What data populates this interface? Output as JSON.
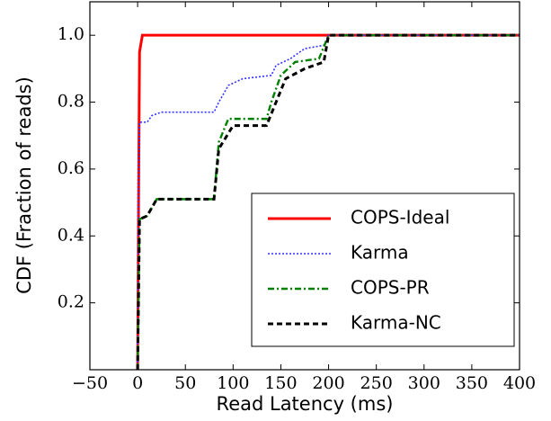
{
  "chart_data": {
    "type": "line",
    "xlabel": "Read Latency (ms)",
    "ylabel": "CDF (Fraction of reads)",
    "xlim": [
      -50,
      400
    ],
    "xticks": [
      {
        "value": -50,
        "label": "−50"
      },
      0,
      50,
      100,
      150,
      200,
      250,
      300,
      350,
      400
    ],
    "ylim": [
      0,
      1.1
    ],
    "yticks": [
      0.2,
      0.4,
      0.6,
      0.8,
      {
        "value": 1,
        "label": "1.0"
      }
    ],
    "legend": "lower right",
    "series": [
      {
        "name": "COPS-Ideal",
        "color": "#ff0000",
        "style": "solid",
        "x": [
          0,
          1,
          2,
          5,
          400
        ],
        "values": [
          0,
          0.5,
          0.95,
          1.0,
          1.0
        ]
      },
      {
        "name": "Karma",
        "color": "#3333ff",
        "style": "dotted",
        "x": [
          0,
          1,
          2,
          10,
          15,
          25,
          80,
          85,
          95,
          110,
          140,
          145,
          160,
          175,
          195,
          200,
          400
        ],
        "values": [
          0,
          0.6,
          0.74,
          0.74,
          0.76,
          0.77,
          0.77,
          0.8,
          0.85,
          0.87,
          0.88,
          0.91,
          0.93,
          0.96,
          0.97,
          1.0,
          1.0
        ]
      },
      {
        "name": "COPS-PR",
        "color": "#008000",
        "style": "dashdot",
        "x": [
          0,
          2,
          10,
          20,
          80,
          85,
          95,
          135,
          140,
          150,
          165,
          190,
          200,
          400
        ],
        "values": [
          0,
          0.45,
          0.46,
          0.51,
          0.51,
          0.68,
          0.75,
          0.75,
          0.8,
          0.88,
          0.92,
          0.93,
          1.0,
          1.0
        ]
      },
      {
        "name": "Karma-NC",
        "color": "#000000",
        "style": "dashed",
        "x": [
          0,
          2,
          10,
          20,
          80,
          85,
          100,
          135,
          145,
          155,
          175,
          195,
          200,
          400
        ],
        "values": [
          0,
          0.45,
          0.46,
          0.51,
          0.51,
          0.66,
          0.73,
          0.73,
          0.8,
          0.87,
          0.9,
          0.92,
          1.0,
          1.0
        ]
      }
    ]
  }
}
